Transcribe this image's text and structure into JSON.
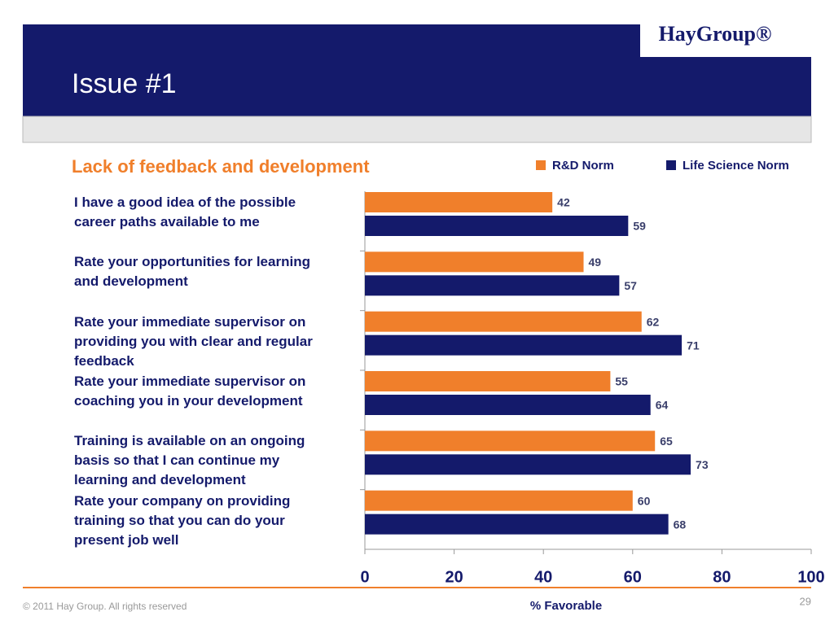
{
  "header": {
    "logo": "HayGroup®",
    "title": "Issue #1"
  },
  "chart_data": {
    "type": "bar",
    "orientation": "horizontal",
    "title": "Lack of feedback and development",
    "categories": [
      "I have a good idea of the possible\ncareer paths available to me",
      "Rate your opportunities for learning\nand development",
      "Rate your immediate supervisor on\nproviding you with clear and regular\nfeedback",
      "Rate your immediate supervisor on\ncoaching you in your development",
      "Training is available on an ongoing\nbasis so that I can continue my\nlearning and development",
      "Rate your company on providing\ntraining so that you can do your\npresent job well"
    ],
    "series": [
      {
        "name": "R&D Norm",
        "color": "#f07f2b",
        "values": [
          42,
          49,
          62,
          55,
          65,
          60
        ]
      },
      {
        "name": "Life Science Norm",
        "color": "#141a6b",
        "values": [
          59,
          57,
          71,
          64,
          73,
          68
        ]
      }
    ],
    "xlim": [
      0,
      100
    ],
    "xticks": [
      0,
      20,
      40,
      60,
      80,
      100
    ],
    "xlabel": "% Favorable",
    "legend": "top-right",
    "grid": false
  },
  "footer": {
    "copyright": "© 2011 Hay Group. All rights reserved",
    "page": "29"
  }
}
